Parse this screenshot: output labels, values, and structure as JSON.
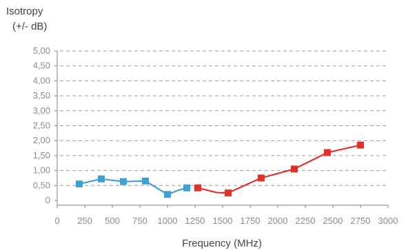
{
  "chart_data": {
    "type": "line",
    "title": "",
    "ylabel_line1": "Isotropy",
    "ylabel_line2": "(+/- dB)",
    "xlabel": "Frequency (MHz)",
    "xlim": [
      0,
      3000
    ],
    "ylim": [
      0,
      5
    ],
    "x_ticks": [
      0,
      250,
      500,
      750,
      1000,
      1250,
      1500,
      1750,
      2000,
      2250,
      2500,
      2750,
      3000
    ],
    "x_tick_labels": [
      "0",
      "250",
      "500",
      "750",
      "1000",
      "1250",
      "1500",
      "1750",
      "2000",
      "2250",
      "2500",
      "2750",
      "3000"
    ],
    "y_ticks": [
      0,
      0.5,
      1,
      1.5,
      2,
      2.5,
      3,
      3.5,
      4,
      4.5,
      5
    ],
    "y_tick_labels": [
      "0",
      "0,50",
      "1,00",
      "1,50",
      "2,00",
      "2,50",
      "3,00",
      "3,50",
      "4,00",
      "4,50",
      "5,00"
    ],
    "grid": "horizontal-dashed",
    "legend": "none",
    "series": [
      {
        "color": "#3fa0d6",
        "marker": "square",
        "points": [
          {
            "x": 200,
            "y": 0.55,
            "marker": true
          },
          {
            "x": 400,
            "y": 0.72,
            "marker": true
          },
          {
            "x": 600,
            "y": 0.63,
            "marker": true
          },
          {
            "x": 800,
            "y": 0.65,
            "marker": true
          },
          {
            "x": 1000,
            "y": 0.2,
            "marker": true
          },
          {
            "x": 1100,
            "y": 0.34,
            "marker": false
          },
          {
            "x": 1175,
            "y": 0.42,
            "marker": true
          }
        ]
      },
      {
        "color": "#e0322b",
        "marker": "square",
        "points": [
          {
            "x": 1275,
            "y": 0.42,
            "marker": true
          },
          {
            "x": 1450,
            "y": 0.26,
            "marker": false
          },
          {
            "x": 1550,
            "y": 0.25,
            "marker": true
          },
          {
            "x": 1850,
            "y": 0.75,
            "marker": true
          },
          {
            "x": 2150,
            "y": 1.05,
            "marker": true
          },
          {
            "x": 2450,
            "y": 1.6,
            "marker": true
          },
          {
            "x": 2750,
            "y": 1.85,
            "marker": true
          }
        ]
      }
    ]
  }
}
